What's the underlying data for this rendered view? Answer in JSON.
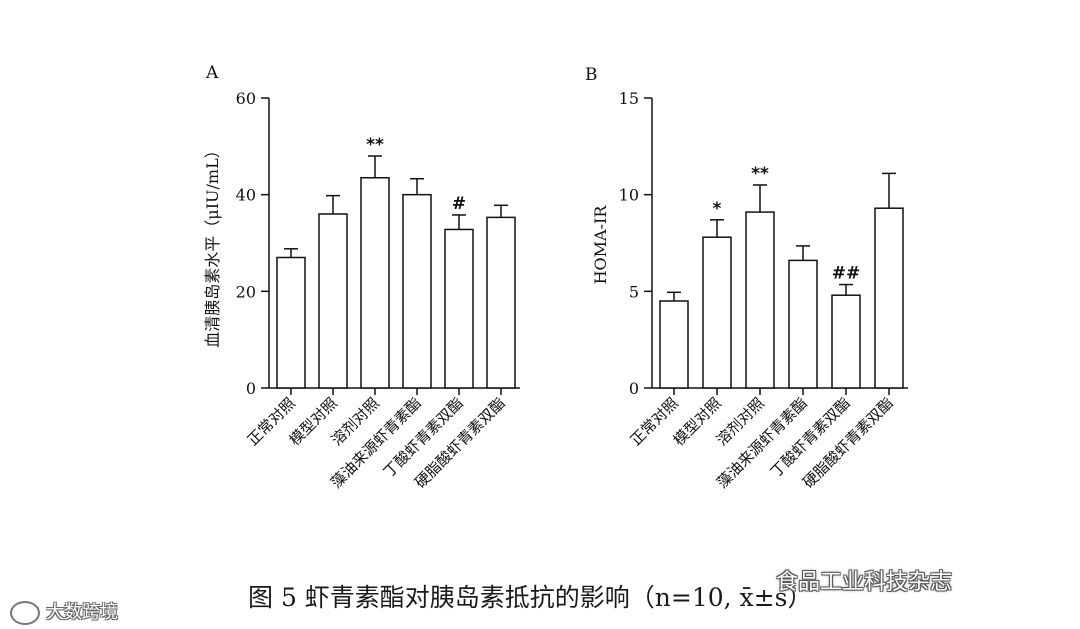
{
  "chart_data": [
    {
      "type": "bar",
      "panel_label": "A",
      "ylabel": "血清胰岛素水平（μIU/mL）",
      "ylim": [
        0,
        60
      ],
      "yticks": [
        0,
        20,
        40,
        60
      ],
      "categories": [
        "正常对照",
        "模型对照",
        "溶剂对照",
        "藻油来源虾青素酯",
        "丁酸虾青素双酯",
        "硬脂酸虾青素双酯"
      ],
      "values": [
        27,
        36,
        43.5,
        40,
        32.8,
        35.3
      ],
      "errors": [
        1.8,
        3.8,
        4.5,
        3.3,
        3.0,
        2.5
      ],
      "annotations": [
        "",
        "",
        "**",
        "",
        "#",
        ""
      ]
    },
    {
      "type": "bar",
      "panel_label": "B",
      "ylabel": "HOMA-IR",
      "ylim": [
        0,
        15
      ],
      "yticks": [
        0,
        5,
        10,
        15
      ],
      "categories": [
        "正常对照",
        "模型对照",
        "溶剂对照",
        "藻油来源虾青素酯",
        "丁酸虾青素双酯",
        "硬脂酸虾青素双酯"
      ],
      "values": [
        4.5,
        7.8,
        9.1,
        6.6,
        4.8,
        9.3
      ],
      "errors": [
        0.45,
        0.9,
        1.4,
        0.75,
        0.55,
        1.8
      ],
      "annotations": [
        "",
        "*",
        "**",
        "",
        "##",
        ""
      ]
    }
  ],
  "caption": "图 5 虾青素酯对胰岛素抵抗的影响（n=10, x̄±s）",
  "watermark_right": "食品工业科技杂志",
  "watermark_left": "大数跨境"
}
